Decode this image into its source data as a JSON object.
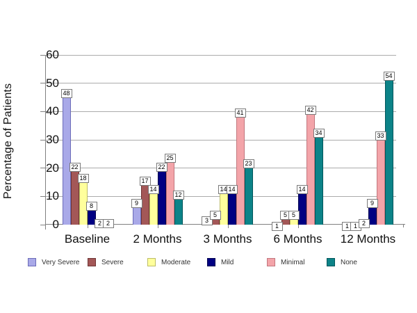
{
  "chart_data": {
    "type": "bar",
    "title": "",
    "xlabel": "",
    "ylabel": "Percentage of Patients",
    "ylim": [
      0,
      60
    ],
    "yticks": [
      0,
      10,
      20,
      30,
      40,
      50,
      60
    ],
    "grid": true,
    "legend_position": "bottom",
    "bar_value_labels": true,
    "categories": [
      "Baseline",
      "2 Months",
      "3 Months",
      "6 Months",
      "12 Months"
    ],
    "series": [
      {
        "name": "Very Severe",
        "color": "#a9a9e8",
        "border": "#6b6bb8",
        "values": [
          48,
          9,
          3,
          1,
          1
        ]
      },
      {
        "name": "Severe",
        "color": "#a35757",
        "border": "#6e3434",
        "values": [
          22,
          17,
          5,
          5,
          1
        ]
      },
      {
        "name": "Moderate",
        "color": "#ffff9c",
        "border": "#bcbc66",
        "values": [
          18,
          14,
          14,
          5,
          2
        ]
      },
      {
        "name": "Mild",
        "color": "#000082",
        "border": "#000050",
        "values": [
          8,
          22,
          14,
          14,
          9
        ]
      },
      {
        "name": "Minimal",
        "color": "#f3a4a9",
        "border": "#c2767d",
        "values": [
          2,
          25,
          41,
          42,
          33
        ]
      },
      {
        "name": "None",
        "color": "#0c8388",
        "border": "#00565b",
        "values": [
          2,
          12,
          23,
          34,
          54
        ]
      }
    ],
    "colors": {
      "gridline": "#ababab",
      "axis": "#808080",
      "text": "#111111"
    }
  }
}
